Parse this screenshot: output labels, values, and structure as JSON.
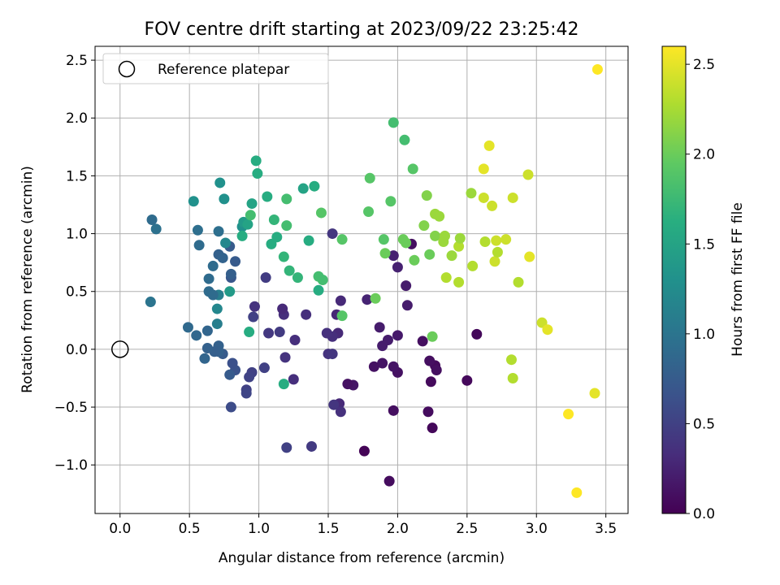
{
  "chart_data": {
    "type": "scatter",
    "title": "FOV centre drift starting at 2023/09/22 23:25:42",
    "xlabel": "Angular distance from reference (arcmin)",
    "ylabel": "Rotation from reference (arcmin)",
    "xlim": [
      -0.18,
      3.66
    ],
    "ylim": [
      -1.42,
      2.62
    ],
    "xticks": [
      0.0,
      0.5,
      1.0,
      1.5,
      2.0,
      2.5,
      3.0,
      3.5
    ],
    "xtick_labels": [
      "0.0",
      "0.5",
      "1.0",
      "1.5",
      "2.0",
      "2.5",
      "3.0",
      "3.5"
    ],
    "yticks": [
      -1.0,
      -0.5,
      0.0,
      0.5,
      1.0,
      1.5,
      2.0,
      2.5
    ],
    "ytick_labels": [
      "−1.0",
      "−0.5",
      "0.0",
      "0.5",
      "1.0",
      "1.5",
      "2.0",
      "2.5"
    ],
    "grid": true,
    "legend": {
      "position": "top-left",
      "entries": [
        {
          "label": "Reference platepar",
          "marker": "open-circle"
        }
      ]
    },
    "reference_point": {
      "x": 0.0,
      "y": 0.0
    },
    "colorbar": {
      "label": "Hours from first FF file",
      "colormap": "viridis",
      "range": [
        0.0,
        2.6
      ],
      "ticks": [
        0.0,
        0.5,
        1.0,
        1.5,
        2.0,
        2.5
      ],
      "tick_labels": [
        "0.0",
        "0.5",
        "1.0",
        "1.5",
        "2.0",
        "2.5"
      ]
    },
    "points": [
      {
        "x": 1.76,
        "y": -0.88,
        "c": 0.02
      },
      {
        "x": 1.94,
        "y": -1.14,
        "c": 0.08
      },
      {
        "x": 2.25,
        "y": -0.68,
        "c": 0.05
      },
      {
        "x": 2.22,
        "y": -0.54,
        "c": 0.08
      },
      {
        "x": 1.97,
        "y": -0.53,
        "c": 0.1
      },
      {
        "x": 2.5,
        "y": -0.27,
        "c": 0.06
      },
      {
        "x": 2.24,
        "y": -0.28,
        "c": 0.07
      },
      {
        "x": 2.57,
        "y": 0.13,
        "c": 0.05
      },
      {
        "x": 2.27,
        "y": -0.14,
        "c": 0.07
      },
      {
        "x": 2.28,
        "y": -0.18,
        "c": 0.1
      },
      {
        "x": 2.23,
        "y": -0.1,
        "c": 0.1
      },
      {
        "x": 2.18,
        "y": 0.07,
        "c": 0.1
      },
      {
        "x": 2.0,
        "y": -0.2,
        "c": 0.12
      },
      {
        "x": 1.97,
        "y": -0.15,
        "c": 0.14
      },
      {
        "x": 1.89,
        "y": -0.12,
        "c": 0.14
      },
      {
        "x": 1.83,
        "y": -0.15,
        "c": 0.12
      },
      {
        "x": 1.68,
        "y": -0.31,
        "c": 0.15
      },
      {
        "x": 1.64,
        "y": -0.3,
        "c": 0.12
      },
      {
        "x": 1.93,
        "y": 0.08,
        "c": 0.2
      },
      {
        "x": 1.89,
        "y": 0.03,
        "c": 0.2
      },
      {
        "x": 1.87,
        "y": 0.19,
        "c": 0.2
      },
      {
        "x": 2.0,
        "y": 0.12,
        "c": 0.18
      },
      {
        "x": 2.07,
        "y": 0.38,
        "c": 0.2
      },
      {
        "x": 2.06,
        "y": 0.55,
        "c": 0.2
      },
      {
        "x": 2.0,
        "y": 0.71,
        "c": 0.24
      },
      {
        "x": 1.97,
        "y": 0.81,
        "c": 0.24
      },
      {
        "x": 2.1,
        "y": 0.91,
        "c": 0.1
      },
      {
        "x": 1.78,
        "y": 0.43,
        "c": 0.26
      },
      {
        "x": 1.59,
        "y": 0.42,
        "c": 0.3
      },
      {
        "x": 1.56,
        "y": 0.3,
        "c": 0.28
      },
      {
        "x": 1.57,
        "y": 0.14,
        "c": 0.3
      },
      {
        "x": 1.53,
        "y": 0.11,
        "c": 0.34
      },
      {
        "x": 1.49,
        "y": 0.14,
        "c": 0.36
      },
      {
        "x": 1.5,
        "y": -0.04,
        "c": 0.38
      },
      {
        "x": 1.53,
        "y": -0.04,
        "c": 0.4
      },
      {
        "x": 1.58,
        "y": -0.47,
        "c": 0.3
      },
      {
        "x": 1.54,
        "y": -0.48,
        "c": 0.4
      },
      {
        "x": 1.59,
        "y": -0.54,
        "c": 0.36
      },
      {
        "x": 1.53,
        "y": 1.0,
        "c": 0.4
      },
      {
        "x": 1.34,
        "y": 0.3,
        "c": 0.34
      },
      {
        "x": 1.26,
        "y": 0.08,
        "c": 0.34
      },
      {
        "x": 1.25,
        "y": -0.26,
        "c": 0.34
      },
      {
        "x": 1.19,
        "y": -0.07,
        "c": 0.38
      },
      {
        "x": 1.18,
        "y": 0.3,
        "c": 0.34
      },
      {
        "x": 1.17,
        "y": 0.35,
        "c": 0.3
      },
      {
        "x": 1.15,
        "y": 0.15,
        "c": 0.45
      },
      {
        "x": 1.07,
        "y": 0.14,
        "c": 0.42
      },
      {
        "x": 1.05,
        "y": 0.62,
        "c": 0.46
      },
      {
        "x": 0.97,
        "y": 0.37,
        "c": 0.38
      },
      {
        "x": 0.96,
        "y": 0.28,
        "c": 0.5
      },
      {
        "x": 1.04,
        "y": -0.16,
        "c": 0.5
      },
      {
        "x": 0.95,
        "y": -0.2,
        "c": 0.5
      },
      {
        "x": 0.93,
        "y": -0.24,
        "c": 0.52
      },
      {
        "x": 0.91,
        "y": -0.35,
        "c": 0.5
      },
      {
        "x": 0.91,
        "y": -0.38,
        "c": 0.54
      },
      {
        "x": 1.38,
        "y": -0.84,
        "c": 0.44
      },
      {
        "x": 1.2,
        "y": -0.85,
        "c": 0.5
      },
      {
        "x": 0.8,
        "y": -0.5,
        "c": 0.6
      },
      {
        "x": 0.83,
        "y": -0.18,
        "c": 0.66
      },
      {
        "x": 0.81,
        "y": -0.12,
        "c": 0.64
      },
      {
        "x": 0.79,
        "y": -0.22,
        "c": 0.74
      },
      {
        "x": 0.74,
        "y": -0.04,
        "c": 0.74
      },
      {
        "x": 0.71,
        "y": 0.03,
        "c": 0.8
      },
      {
        "x": 0.71,
        "y": -0.02,
        "c": 0.8
      },
      {
        "x": 0.68,
        "y": -0.02,
        "c": 0.78
      },
      {
        "x": 0.63,
        "y": 0.01,
        "c": 0.8
      },
      {
        "x": 0.61,
        "y": -0.08,
        "c": 0.84
      },
      {
        "x": 0.63,
        "y": 0.16,
        "c": 0.84
      },
      {
        "x": 0.55,
        "y": 0.12,
        "c": 0.86
      },
      {
        "x": 0.49,
        "y": 0.19,
        "c": 0.88
      },
      {
        "x": 0.7,
        "y": 0.22,
        "c": 1.1
      },
      {
        "x": 0.7,
        "y": 0.35,
        "c": 1.2
      },
      {
        "x": 0.71,
        "y": 0.47,
        "c": 1.1
      },
      {
        "x": 0.64,
        "y": 0.5,
        "c": 0.9
      },
      {
        "x": 0.67,
        "y": 0.47,
        "c": 0.9
      },
      {
        "x": 0.64,
        "y": 0.61,
        "c": 0.9
      },
      {
        "x": 0.67,
        "y": 0.72,
        "c": 0.9
      },
      {
        "x": 0.71,
        "y": 0.82,
        "c": 0.8
      },
      {
        "x": 0.74,
        "y": 0.79,
        "c": 0.82
      },
      {
        "x": 0.8,
        "y": 0.62,
        "c": 0.7
      },
      {
        "x": 0.8,
        "y": 0.65,
        "c": 0.78
      },
      {
        "x": 0.83,
        "y": 0.76,
        "c": 0.74
      },
      {
        "x": 0.79,
        "y": 0.89,
        "c": 0.74
      },
      {
        "x": 0.57,
        "y": 0.9,
        "c": 0.9
      },
      {
        "x": 0.56,
        "y": 1.03,
        "c": 0.94
      },
      {
        "x": 0.71,
        "y": 1.02,
        "c": 0.94
      },
      {
        "x": 0.76,
        "y": 0.92,
        "c": 1.2
      },
      {
        "x": 0.79,
        "y": 0.5,
        "c": 1.4
      },
      {
        "x": 0.93,
        "y": 0.15,
        "c": 1.6
      },
      {
        "x": 0.23,
        "y": 1.12,
        "c": 0.9
      },
      {
        "x": 0.26,
        "y": 1.04,
        "c": 0.96
      },
      {
        "x": 0.22,
        "y": 0.41,
        "c": 1.0
      },
      {
        "x": 0.53,
        "y": 1.28,
        "c": 1.3
      },
      {
        "x": 0.72,
        "y": 1.44,
        "c": 1.3
      },
      {
        "x": 0.75,
        "y": 1.3,
        "c": 1.3
      },
      {
        "x": 0.88,
        "y": 1.06,
        "c": 1.3
      },
      {
        "x": 0.89,
        "y": 1.1,
        "c": 1.4
      },
      {
        "x": 0.92,
        "y": 1.08,
        "c": 1.5
      },
      {
        "x": 0.88,
        "y": 0.98,
        "c": 1.6
      },
      {
        "x": 0.94,
        "y": 1.16,
        "c": 1.8
      },
      {
        "x": 0.95,
        "y": 1.26,
        "c": 1.5
      },
      {
        "x": 0.98,
        "y": 1.63,
        "c": 1.6
      },
      {
        "x": 0.99,
        "y": 1.52,
        "c": 1.6
      },
      {
        "x": 1.06,
        "y": 1.32,
        "c": 1.6
      },
      {
        "x": 1.09,
        "y": 0.91,
        "c": 1.6
      },
      {
        "x": 1.11,
        "y": 1.12,
        "c": 1.7
      },
      {
        "x": 1.13,
        "y": 0.97,
        "c": 1.6
      },
      {
        "x": 1.18,
        "y": 0.8,
        "c": 1.7
      },
      {
        "x": 1.2,
        "y": 1.07,
        "c": 1.8
      },
      {
        "x": 1.2,
        "y": 1.3,
        "c": 1.8
      },
      {
        "x": 1.22,
        "y": 0.68,
        "c": 1.7
      },
      {
        "x": 1.28,
        "y": 0.62,
        "c": 1.7
      },
      {
        "x": 1.18,
        "y": -0.3,
        "c": 1.6
      },
      {
        "x": 1.32,
        "y": 1.39,
        "c": 1.5
      },
      {
        "x": 1.36,
        "y": 0.94,
        "c": 1.6
      },
      {
        "x": 1.4,
        "y": 1.41,
        "c": 1.6
      },
      {
        "x": 1.43,
        "y": 0.51,
        "c": 1.6
      },
      {
        "x": 1.43,
        "y": 0.63,
        "c": 1.8
      },
      {
        "x": 1.46,
        "y": 0.6,
        "c": 1.8
      },
      {
        "x": 1.45,
        "y": 1.18,
        "c": 1.9
      },
      {
        "x": 1.6,
        "y": 0.95,
        "c": 1.9
      },
      {
        "x": 1.6,
        "y": 0.29,
        "c": 1.9
      },
      {
        "x": 1.79,
        "y": 1.19,
        "c": 1.9
      },
      {
        "x": 1.8,
        "y": 1.48,
        "c": 1.9
      },
      {
        "x": 1.84,
        "y": 0.44,
        "c": 2.0
      },
      {
        "x": 1.9,
        "y": 0.95,
        "c": 1.9
      },
      {
        "x": 1.91,
        "y": 0.83,
        "c": 2.0
      },
      {
        "x": 1.95,
        "y": 1.28,
        "c": 1.9
      },
      {
        "x": 1.97,
        "y": 1.96,
        "c": 1.8
      },
      {
        "x": 2.05,
        "y": 1.81,
        "c": 1.8
      },
      {
        "x": 2.04,
        "y": 0.95,
        "c": 2.0
      },
      {
        "x": 2.06,
        "y": 0.92,
        "c": 2.0
      },
      {
        "x": 2.11,
        "y": 1.56,
        "c": 1.9
      },
      {
        "x": 2.12,
        "y": 0.77,
        "c": 2.0
      },
      {
        "x": 2.19,
        "y": 1.07,
        "c": 2.1
      },
      {
        "x": 2.21,
        "y": 1.33,
        "c": 2.1
      },
      {
        "x": 2.23,
        "y": 0.82,
        "c": 2.0
      },
      {
        "x": 2.27,
        "y": 0.98,
        "c": 2.1
      },
      {
        "x": 2.27,
        "y": 1.17,
        "c": 2.2
      },
      {
        "x": 2.3,
        "y": 1.15,
        "c": 2.2
      },
      {
        "x": 2.25,
        "y": 0.11,
        "c": 2.0
      },
      {
        "x": 2.33,
        "y": 0.93,
        "c": 2.2
      },
      {
        "x": 2.34,
        "y": 0.98,
        "c": 2.2
      },
      {
        "x": 2.35,
        "y": 0.62,
        "c": 2.3
      },
      {
        "x": 2.39,
        "y": 0.81,
        "c": 2.2
      },
      {
        "x": 2.44,
        "y": 0.89,
        "c": 2.3
      },
      {
        "x": 2.45,
        "y": 0.96,
        "c": 2.2
      },
      {
        "x": 2.44,
        "y": 0.58,
        "c": 2.3
      },
      {
        "x": 2.53,
        "y": 1.35,
        "c": 2.2
      },
      {
        "x": 2.54,
        "y": 0.72,
        "c": 2.3
      },
      {
        "x": 2.62,
        "y": 1.56,
        "c": 2.5
      },
      {
        "x": 2.62,
        "y": 1.31,
        "c": 2.4
      },
      {
        "x": 2.63,
        "y": 0.93,
        "c": 2.3
      },
      {
        "x": 2.66,
        "y": 1.76,
        "c": 2.5
      },
      {
        "x": 2.68,
        "y": 1.24,
        "c": 2.4
      },
      {
        "x": 2.7,
        "y": 0.76,
        "c": 2.4
      },
      {
        "x": 2.72,
        "y": 0.84,
        "c": 2.3
      },
      {
        "x": 2.71,
        "y": 0.94,
        "c": 2.4
      },
      {
        "x": 2.78,
        "y": 0.95,
        "c": 2.4
      },
      {
        "x": 2.83,
        "y": 1.31,
        "c": 2.4
      },
      {
        "x": 2.87,
        "y": 0.58,
        "c": 2.3
      },
      {
        "x": 2.94,
        "y": 1.51,
        "c": 2.4
      },
      {
        "x": 2.95,
        "y": 0.8,
        "c": 2.5
      },
      {
        "x": 2.82,
        "y": -0.09,
        "c": 2.3
      },
      {
        "x": 2.83,
        "y": -0.25,
        "c": 2.3
      },
      {
        "x": 3.04,
        "y": 0.23,
        "c": 2.4
      },
      {
        "x": 3.08,
        "y": 0.17,
        "c": 2.5
      },
      {
        "x": 3.23,
        "y": -0.56,
        "c": 2.6
      },
      {
        "x": 3.29,
        "y": -1.24,
        "c": 2.6
      },
      {
        "x": 3.42,
        "y": -0.38,
        "c": 2.5
      },
      {
        "x": 3.44,
        "y": 2.42,
        "c": 2.6
      }
    ]
  }
}
